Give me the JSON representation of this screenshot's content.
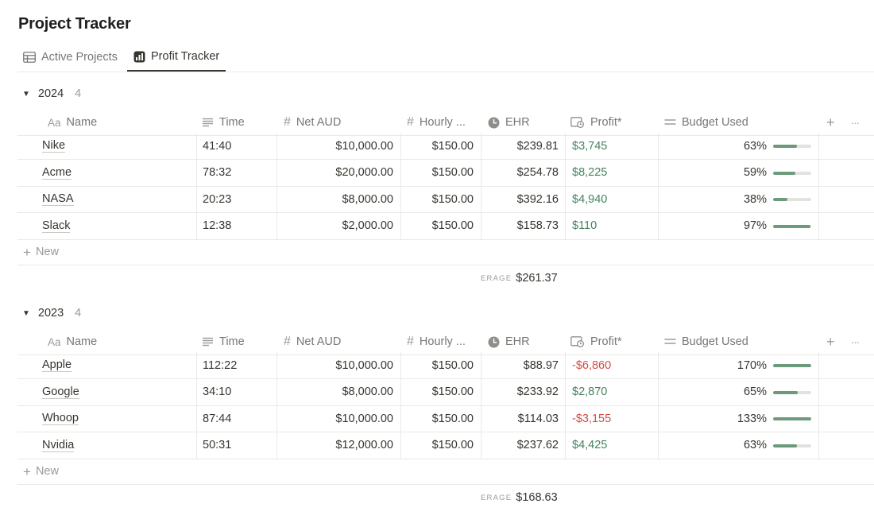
{
  "page": {
    "title": "Project Tracker"
  },
  "tabs": [
    {
      "label": "Active Projects",
      "icon": "table-icon"
    },
    {
      "label": "Profit Tracker",
      "icon": "chart-icon",
      "active": true
    }
  ],
  "columns": {
    "name": "Name",
    "time": "Time",
    "net": "Net AUD",
    "hourly": "Hourly ...",
    "ehr": "EHR",
    "profit": "Profit*",
    "budget": "Budget Used",
    "name_prefix": "Aa",
    "num_prefix": "#",
    "plus": "+",
    "more": "···"
  },
  "new_label": "New",
  "calc_label": "ERAGE",
  "accent_colors": {
    "positive": "#448361",
    "negative": "#d44c47",
    "bar": "#6c9a7b"
  },
  "groups": [
    {
      "label": "2024",
      "count": "4",
      "average": "$261.37",
      "rows": [
        {
          "name": "Nike",
          "time": "41:40",
          "net": "$10,000.00",
          "hourly": "$150.00",
          "ehr": "$239.81",
          "profit": "$3,745",
          "profit_sign": "pos",
          "budget": "63%",
          "budget_fraction": 0.63
        },
        {
          "name": "Acme",
          "time": "78:32",
          "net": "$20,000.00",
          "hourly": "$150.00",
          "ehr": "$254.78",
          "profit": "$8,225",
          "profit_sign": "pos",
          "budget": "59%",
          "budget_fraction": 0.59
        },
        {
          "name": "NASA",
          "time": "20:23",
          "net": "$8,000.00",
          "hourly": "$150.00",
          "ehr": "$392.16",
          "profit": "$4,940",
          "profit_sign": "pos",
          "budget": "38%",
          "budget_fraction": 0.38
        },
        {
          "name": "Slack",
          "time": "12:38",
          "net": "$2,000.00",
          "hourly": "$150.00",
          "ehr": "$158.73",
          "profit": "$110",
          "profit_sign": "pos",
          "budget": "97%",
          "budget_fraction": 0.97
        }
      ]
    },
    {
      "label": "2023",
      "count": "4",
      "average": "$168.63",
      "rows": [
        {
          "name": "Apple",
          "time": "112:22",
          "net": "$10,000.00",
          "hourly": "$150.00",
          "ehr": "$88.97",
          "profit": "-$6,860",
          "profit_sign": "neg",
          "budget": "170%",
          "budget_fraction": 1.0
        },
        {
          "name": "Google",
          "time": "34:10",
          "net": "$8,000.00",
          "hourly": "$150.00",
          "ehr": "$233.92",
          "profit": "$2,870",
          "profit_sign": "pos",
          "budget": "65%",
          "budget_fraction": 0.65
        },
        {
          "name": "Whoop",
          "time": "87:44",
          "net": "$10,000.00",
          "hourly": "$150.00",
          "ehr": "$114.03",
          "profit": "-$3,155",
          "profit_sign": "neg",
          "budget": "133%",
          "budget_fraction": 1.0
        },
        {
          "name": "Nvidia",
          "time": "50:31",
          "net": "$12,000.00",
          "hourly": "$150.00",
          "ehr": "$237.62",
          "profit": "$4,425",
          "profit_sign": "pos",
          "budget": "63%",
          "budget_fraction": 0.63
        }
      ]
    }
  ]
}
